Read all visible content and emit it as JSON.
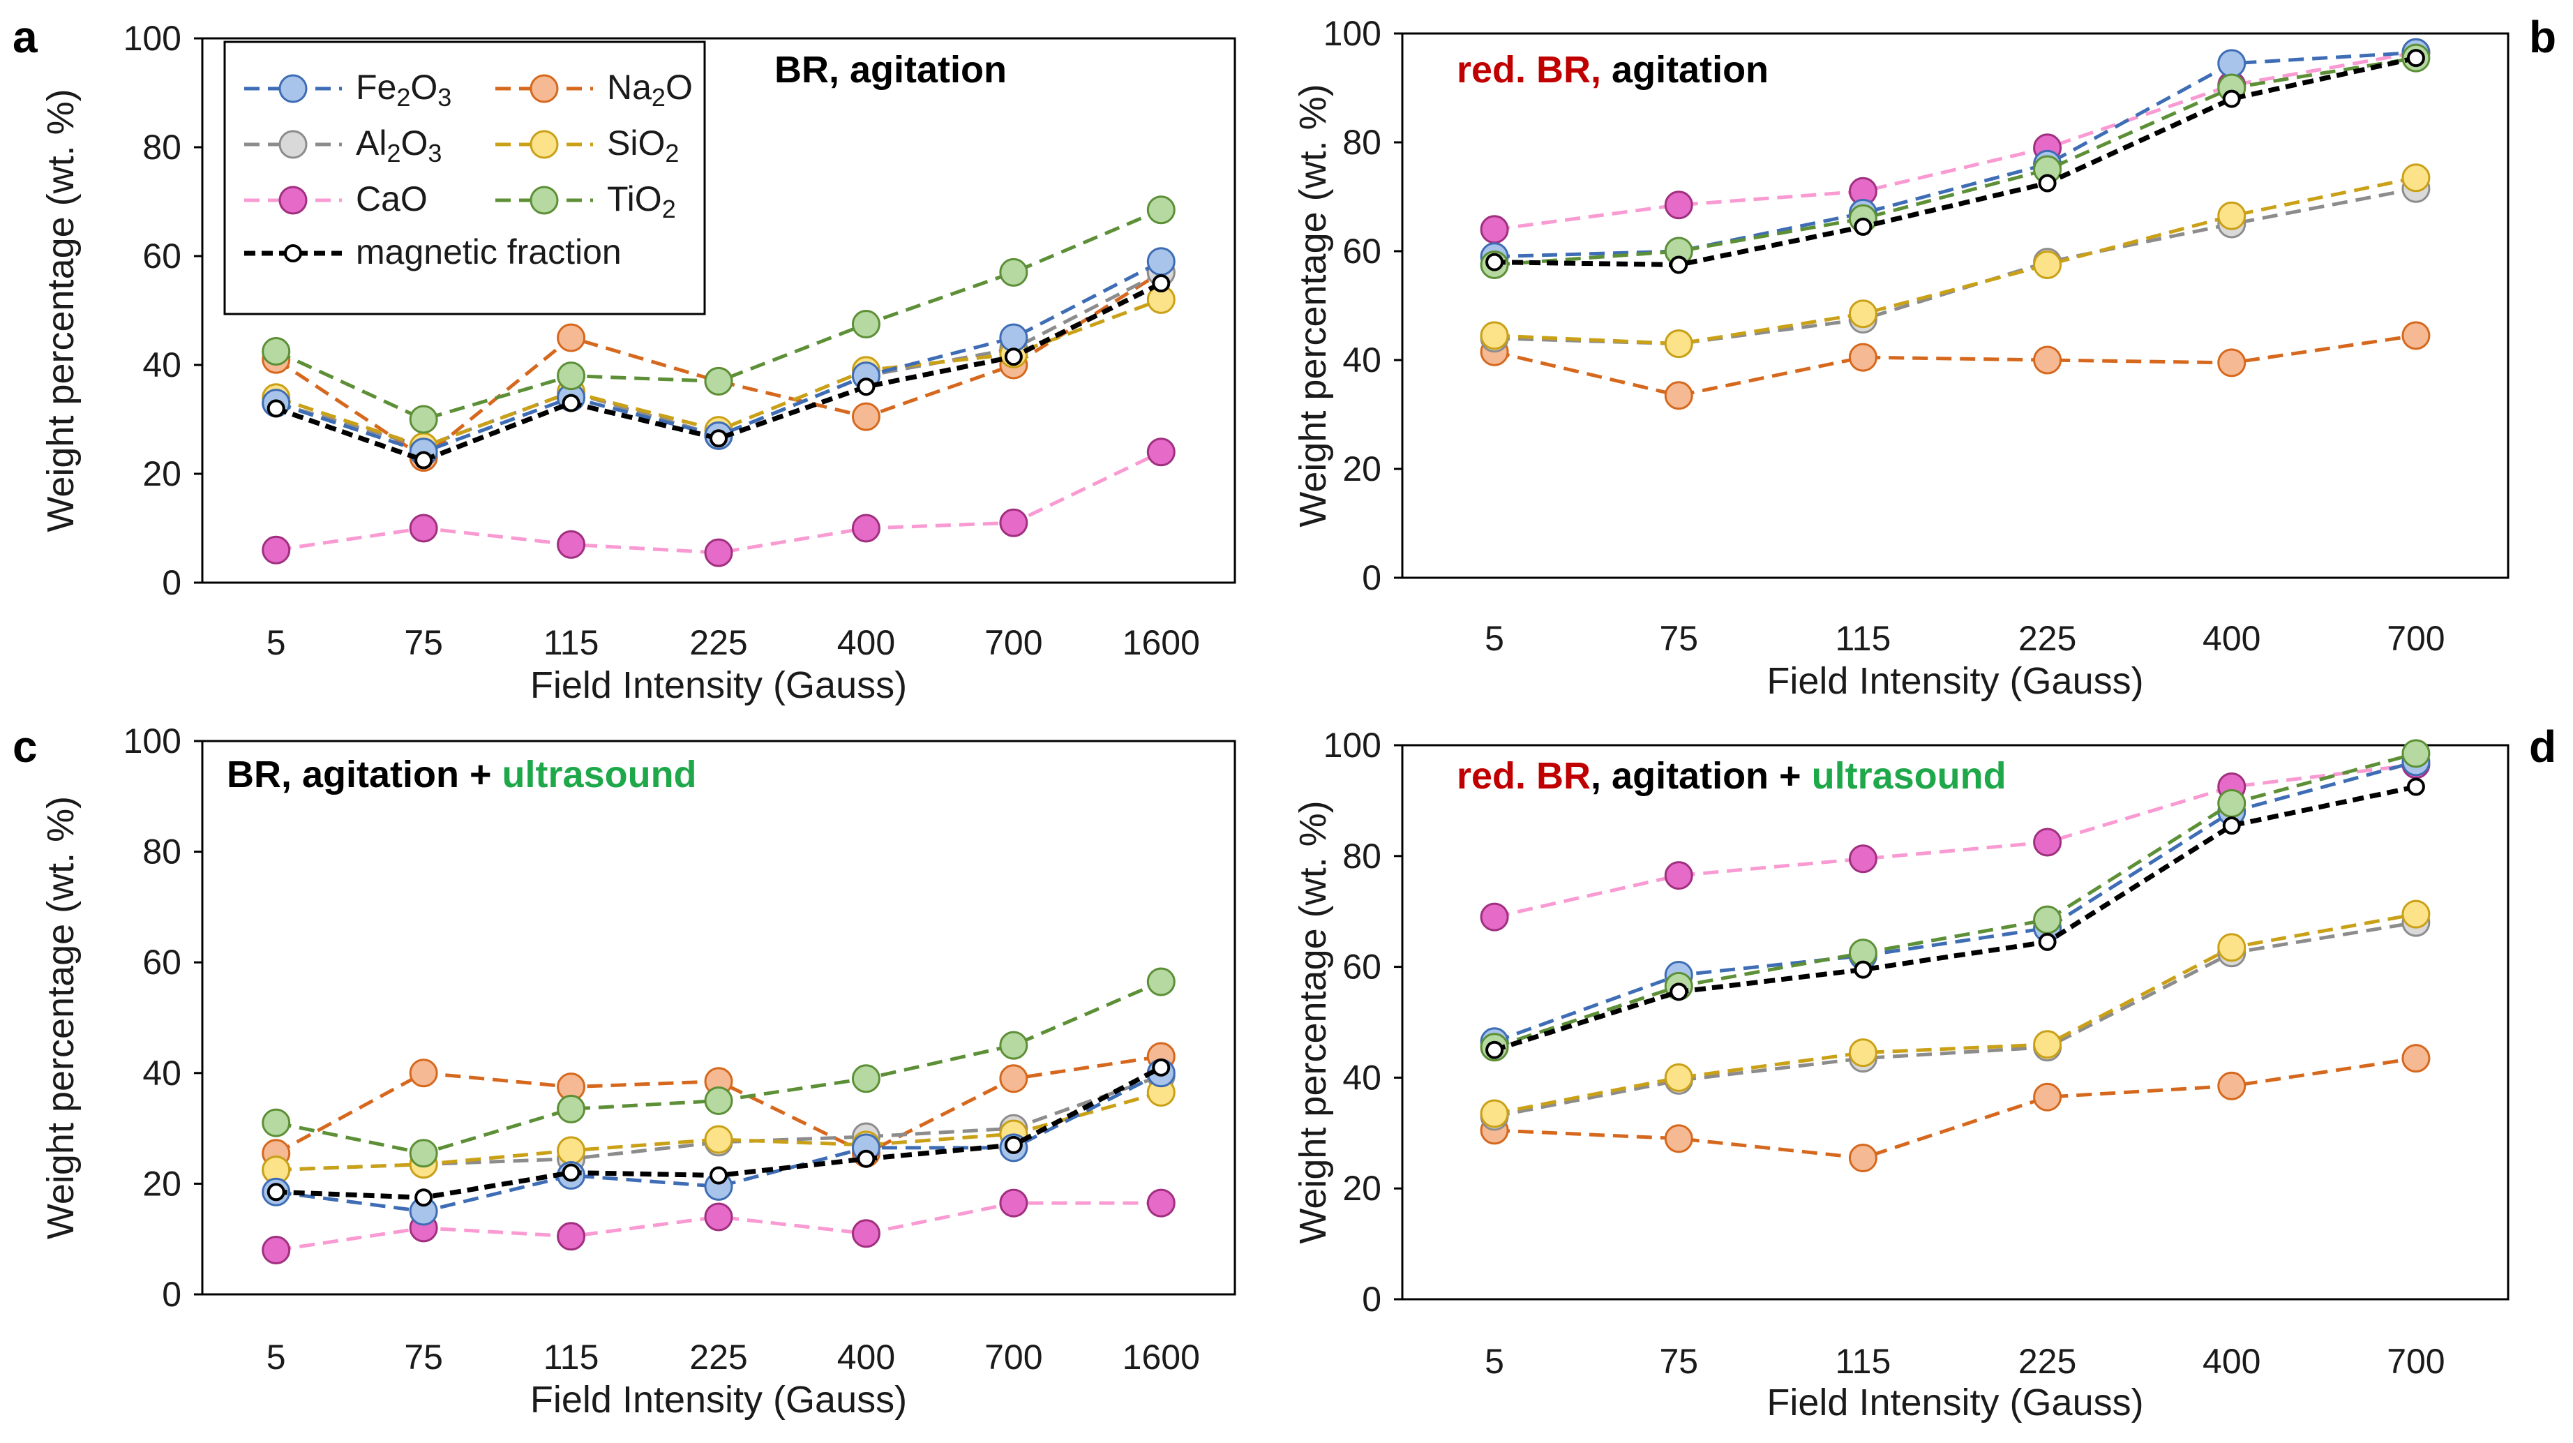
{
  "series_styles": [
    {
      "name": "Fe2O3",
      "main": "Fe",
      "sub": "2",
      "main2": "O",
      "sub2": "3",
      "line": "#3e6db5",
      "fill": "#a9c4ea",
      "edge": "#3e6db5"
    },
    {
      "name": "Na2O",
      "main": "Na",
      "sub": "2",
      "main2": "O",
      "sub2": "",
      "line": "#d6681e",
      "fill": "#f5b993",
      "edge": "#d6681e"
    },
    {
      "name": "Al2O3",
      "main": "Al",
      "sub": "2",
      "main2": "O",
      "sub2": "3",
      "line": "#8c8c8c",
      "fill": "#d9d9d9",
      "edge": "#8c8c8c"
    },
    {
      "name": "SiO2",
      "main": "SiO",
      "sub": "2",
      "main2": "",
      "sub2": "",
      "line": "#c9a016",
      "fill": "#fce38a",
      "edge": "#c9a016"
    },
    {
      "name": "CaO",
      "main": "CaO",
      "sub": "",
      "main2": "",
      "sub2": "",
      "line": "#f99ad2",
      "fill": "#e66ac8",
      "edge": "#a0307f"
    },
    {
      "name": "TiO2",
      "main": "TiO",
      "sub": "2",
      "main2": "",
      "sub2": "",
      "line": "#5c8f36",
      "fill": "#b5d9a1",
      "edge": "#5c8f36"
    },
    {
      "name": "magnetic fraction",
      "main": "magnetic fraction",
      "sub": "",
      "main2": "",
      "sub2": "",
      "line": "#000000",
      "fill": "#ffffff",
      "edge": "#000000"
    }
  ],
  "chart_data": [
    {
      "panel": "a",
      "type": "line",
      "title_parts": [
        {
          "text": "BR, agitation",
          "color": "#000000"
        }
      ],
      "xlabel": "Field Intensity (Gauss)",
      "ylabel": "Weight percentage (wt. %)",
      "categories": [
        "5",
        "75",
        "115",
        "225",
        "400",
        "700",
        "1600"
      ],
      "ylim": [
        0,
        100
      ],
      "yticks": [
        0,
        20,
        40,
        60,
        80,
        100
      ],
      "legend": "top-left",
      "series": [
        {
          "name": "Fe2O3",
          "values": [
            33,
            24,
            34,
            27,
            38,
            45,
            59
          ]
        },
        {
          "name": "Al2O3",
          "values": [
            33,
            25,
            35,
            27,
            38,
            43,
            57
          ]
        },
        {
          "name": "Na2O",
          "values": [
            41,
            23,
            45,
            37,
            30.5,
            40,
            57
          ]
        },
        {
          "name": "SiO2",
          "values": [
            34,
            25,
            35,
            28,
            39,
            42,
            52
          ]
        },
        {
          "name": "TiO2",
          "values": [
            42.5,
            30,
            38,
            37,
            47.5,
            57,
            68.5
          ]
        },
        {
          "name": "CaO",
          "values": [
            6,
            10,
            7,
            5.5,
            10,
            11,
            24
          ]
        },
        {
          "name": "magnetic fraction",
          "values": [
            32,
            22.5,
            33,
            26.5,
            36,
            41.5,
            55
          ]
        }
      ]
    },
    {
      "panel": "b",
      "type": "line",
      "title_parts": [
        {
          "text": "red. BR,",
          "color": "#c00000"
        },
        {
          "text": " agitation",
          "color": "#000000"
        }
      ],
      "xlabel": "Field Intensity (Gauss)",
      "ylabel": "Weight percentage (wt. %)",
      "categories": [
        "5",
        "75",
        "115",
        "225",
        "400",
        "700"
      ],
      "ylim": [
        0,
        100
      ],
      "yticks": [
        0,
        20,
        40,
        60,
        80,
        100
      ],
      "legend": "none",
      "series": [
        {
          "name": "Fe2O3",
          "values": [
            59,
            60,
            67,
            76,
            94.5,
            96.5
          ]
        },
        {
          "name": "Al2O3",
          "values": [
            44,
            43,
            47.5,
            58,
            65,
            71.5
          ]
        },
        {
          "name": "Na2O",
          "values": [
            41.5,
            33.5,
            40.5,
            40,
            39.5,
            44.5
          ]
        },
        {
          "name": "SiO2",
          "values": [
            44.5,
            43,
            48.5,
            57.5,
            66.5,
            73.5
          ]
        },
        {
          "name": "TiO2",
          "values": [
            57.5,
            60,
            66,
            75,
            90,
            95.5
          ]
        },
        {
          "name": "CaO",
          "values": [
            64,
            68.5,
            71,
            79,
            90.5,
            96.5
          ]
        },
        {
          "name": "magnetic fraction",
          "values": [
            58,
            57.5,
            64.5,
            72.5,
            88,
            95.5
          ]
        }
      ]
    },
    {
      "panel": "c",
      "type": "line",
      "title_parts": [
        {
          "text": "BR, agitation + ",
          "color": "#000000"
        },
        {
          "text": "ultrasound",
          "color": "#1fa84a"
        }
      ],
      "xlabel": "Field Intensity (Gauss)",
      "ylabel": "Weight percentage (wt. %)",
      "categories": [
        "5",
        "75",
        "115",
        "225",
        "400",
        "700",
        "1600"
      ],
      "ylim": [
        0,
        100
      ],
      "yticks": [
        0,
        20,
        40,
        60,
        80,
        100
      ],
      "legend": "none",
      "series": [
        {
          "name": "Fe2O3",
          "values": [
            18.5,
            15,
            21.5,
            19.5,
            26.5,
            26.5,
            40
          ]
        },
        {
          "name": "Al2O3",
          "values": [
            22.5,
            23.5,
            24.5,
            27.5,
            28.5,
            30,
            39.5
          ]
        },
        {
          "name": "Na2O",
          "values": [
            25.5,
            40,
            37.5,
            38.5,
            25.5,
            39,
            43
          ]
        },
        {
          "name": "SiO2",
          "values": [
            22.5,
            23.5,
            26,
            28,
            27,
            29,
            36.5
          ]
        },
        {
          "name": "TiO2",
          "values": [
            31,
            25.5,
            33.5,
            35,
            39,
            45,
            56.5
          ]
        },
        {
          "name": "CaO",
          "values": [
            8,
            12,
            10.5,
            14,
            11,
            16.5,
            16.5
          ]
        },
        {
          "name": "magnetic fraction",
          "values": [
            18.5,
            17.5,
            22,
            21.5,
            24.5,
            27,
            41
          ]
        }
      ]
    },
    {
      "panel": "d",
      "type": "line",
      "title_parts": [
        {
          "text": "red. BR",
          "color": "#c00000"
        },
        {
          "text": ", agitation + ",
          "color": "#000000"
        },
        {
          "text": "ultrasound",
          "color": "#1fa84a"
        }
      ],
      "xlabel": "Field Intensity (Gauss)",
      "ylabel": "Weight percentage (wt. %)",
      "categories": [
        "5",
        "75",
        "115",
        "225",
        "400",
        "700"
      ],
      "ylim": [
        0,
        100
      ],
      "yticks": [
        0,
        20,
        40,
        60,
        80,
        100
      ],
      "legend": "none",
      "series": [
        {
          "name": "Fe2O3",
          "values": [
            46.5,
            58.5,
            62,
            67,
            88,
            97
          ]
        },
        {
          "name": "Al2O3",
          "values": [
            33,
            39.5,
            43.5,
            45.5,
            62.5,
            68
          ]
        },
        {
          "name": "Na2O",
          "values": [
            30.5,
            29,
            25.5,
            36.5,
            38.5,
            43.5
          ]
        },
        {
          "name": "SiO2",
          "values": [
            33.5,
            40,
            44.5,
            46,
            63.5,
            69.5
          ]
        },
        {
          "name": "TiO2",
          "values": [
            45.5,
            56.5,
            62.5,
            68.5,
            89.5,
            98.5
          ]
        },
        {
          "name": "CaO",
          "values": [
            69,
            76.5,
            79.5,
            82.5,
            92.5,
            96.5
          ]
        },
        {
          "name": "magnetic fraction",
          "values": [
            45,
            55.5,
            59.5,
            64.5,
            85.5,
            92.5
          ]
        }
      ]
    }
  ]
}
